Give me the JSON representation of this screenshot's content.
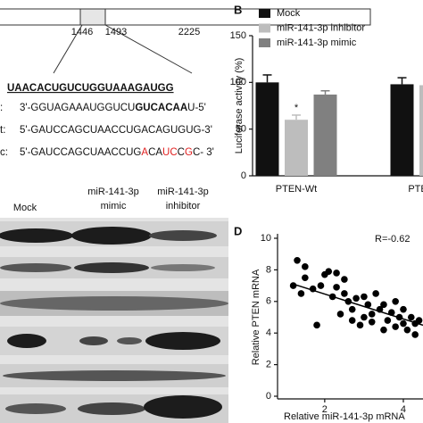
{
  "diagram": {
    "positions": [
      "1446",
      "1493",
      "2225"
    ],
    "seed": "UAACACUGUCUGGUAAAGAUGG",
    "rows": [
      {
        "prefix": ":",
        "parts": [
          {
            "text": "3'-GGUAGAAAUGGUCU"
          },
          {
            "text": "GUCACAA",
            "bold": true
          },
          {
            "text": "U-5'"
          }
        ]
      },
      {
        "prefix": "t:",
        "parts": [
          {
            "text": "5'-GAUCCAGCUAACCUGACAGUGUG-3'"
          }
        ]
      },
      {
        "prefix": "c:",
        "parts": [
          {
            "text": "5'-GAUCCAGCUAACCUG"
          },
          {
            "text": "A",
            "color": "#e02020"
          },
          {
            "text": "CA"
          },
          {
            "text": "UC",
            "color": "#e02020"
          },
          {
            "text": "C"
          },
          {
            "text": "G",
            "color": "#e02020"
          },
          {
            "text": "C- 3'"
          }
        ]
      }
    ]
  },
  "blot": {
    "lanes": [
      [
        "Mock"
      ],
      [
        "miR-141-3p",
        "mimic"
      ],
      [
        "miR-141-3p",
        "inhibitor"
      ]
    ]
  },
  "chart_data": [
    {
      "type": "bar",
      "panel_label": "B",
      "y_label": "Luciferase activity (%)",
      "categories": [
        "PTEN-Wt",
        "PTEN-Mut"
      ],
      "series": [
        {
          "name": "Mock",
          "color": "#111111",
          "values": [
            100,
            98
          ],
          "errors": [
            8,
            7
          ]
        },
        {
          "name": "miR-141-3p inhibitor",
          "color": "#bdbdbd",
          "values": [
            60,
            97
          ],
          "errors": [
            5,
            6
          ]
        },
        {
          "name": "miR-141-3p mimic",
          "color": "#808080",
          "values": [
            87,
            null
          ],
          "errors": [
            4,
            null
          ]
        }
      ],
      "annotation": "*",
      "ylim": [
        0,
        150
      ],
      "yticks": [
        0,
        50,
        100,
        150
      ]
    },
    {
      "type": "scatter",
      "panel_label": "D",
      "y_label": "Relative PTEN mRNA",
      "x_label": "Relative miR-141-3p mRNA",
      "annotation": "R=-0.62",
      "color": "#000000",
      "x": [
        1.3,
        1.2,
        1.4,
        1.5,
        1.5,
        1.7,
        1.8,
        1.9,
        2.0,
        2.1,
        2.2,
        2.3,
        2.3,
        2.4,
        2.5,
        2.5,
        2.6,
        2.7,
        2.7,
        2.8,
        2.9,
        3.0,
        3.0,
        3.1,
        3.2,
        3.2,
        3.3,
        3.4,
        3.5,
        3.5,
        3.6,
        3.7,
        3.8,
        3.8,
        3.9,
        4.0,
        4.0,
        4.1,
        4.2,
        4.3,
        4.3,
        4.4
      ],
      "y": [
        8.6,
        7.0,
        6.5,
        7.5,
        8.2,
        6.8,
        4.5,
        7.0,
        7.7,
        7.9,
        6.3,
        7.8,
        6.9,
        5.2,
        6.5,
        7.4,
        6.0,
        5.5,
        4.8,
        6.2,
        4.5,
        5.0,
        6.3,
        5.8,
        4.7,
        5.2,
        6.5,
        5.5,
        4.2,
        5.8,
        4.8,
        5.3,
        4.4,
        6.0,
        5.0,
        4.6,
        5.5,
        4.2,
        5.0,
        4.6,
        3.9,
        4.8
      ],
      "fit": {
        "x": [
          1.2,
          4.5
        ],
        "y": [
          7.1,
          4.5
        ]
      },
      "xlim": [
        0.8,
        4.5
      ],
      "xticks": [
        2,
        4
      ],
      "ylim": [
        0,
        10
      ],
      "yticks": [
        0,
        2,
        4,
        6,
        8,
        10
      ]
    }
  ]
}
